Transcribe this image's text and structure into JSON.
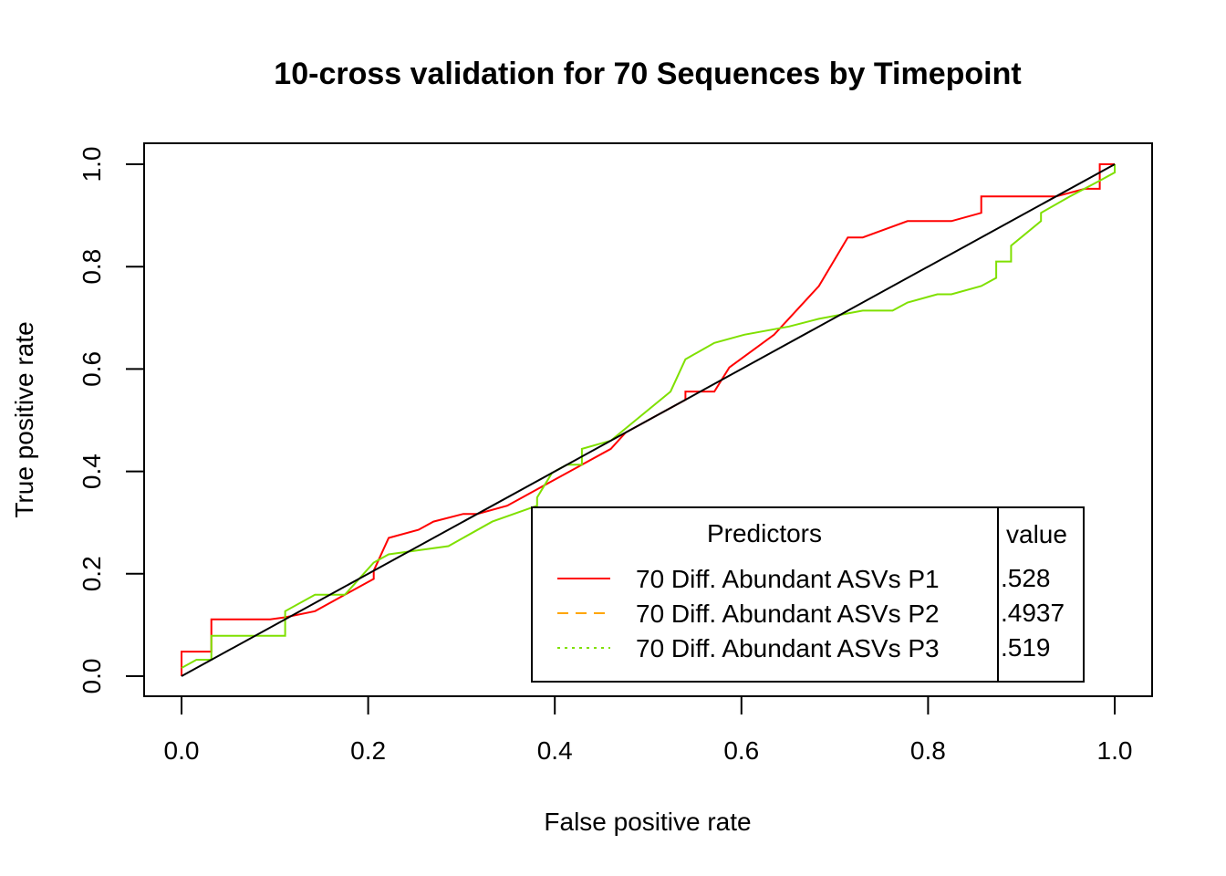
{
  "chart_data": {
    "type": "line",
    "title": "10-cross validation for 70 Sequences by Timepoint",
    "xlabel": "False positive rate",
    "ylabel": "True positive rate",
    "xlim": [
      0,
      1
    ],
    "ylim": [
      0,
      1
    ],
    "x_ticks": [
      "0.0",
      "0.2",
      "0.4",
      "0.6",
      "0.8",
      "1.0"
    ],
    "y_ticks": [
      "0.0",
      "0.2",
      "0.4",
      "0.6",
      "0.8",
      "1.0"
    ],
    "grid": false,
    "legend": {
      "title": "Predictors",
      "value_header": "value",
      "placement": "bottom-right",
      "entries": [
        {
          "label": "70 Diff. Abundant ASVs P1",
          "value": ".528",
          "color": "#FF0000",
          "dash": "solid"
        },
        {
          "label": "70 Diff. Abundant ASVs P2",
          "value": ".4937",
          "color": "#FFA500",
          "dash": "dashed"
        },
        {
          "label": "70 Diff. Abundant ASVs P3",
          "value": ".519",
          "color": "#7FE000",
          "dash": "dotted"
        }
      ]
    },
    "series": [
      {
        "name": "70 Diff. Abundant ASVs P1",
        "color": "#FF0000",
        "points": [
          [
            0,
            0
          ],
          [
            0,
            0.048
          ],
          [
            0.032,
            0.048
          ],
          [
            0.032,
            0.111
          ],
          [
            0.095,
            0.111
          ],
          [
            0.111,
            0.115
          ],
          [
            0.143,
            0.127
          ],
          [
            0.175,
            0.159
          ],
          [
            0.206,
            0.19
          ],
          [
            0.206,
            0.206
          ],
          [
            0.222,
            0.27
          ],
          [
            0.254,
            0.286
          ],
          [
            0.27,
            0.302
          ],
          [
            0.302,
            0.317
          ],
          [
            0.317,
            0.317
          ],
          [
            0.349,
            0.333
          ],
          [
            0.365,
            0.349
          ],
          [
            0.397,
            0.381
          ],
          [
            0.429,
            0.413
          ],
          [
            0.46,
            0.444
          ],
          [
            0.476,
            0.476
          ],
          [
            0.508,
            0.508
          ],
          [
            0.54,
            0.54
          ],
          [
            0.54,
            0.556
          ],
          [
            0.571,
            0.556
          ],
          [
            0.587,
            0.603
          ],
          [
            0.635,
            0.667
          ],
          [
            0.683,
            0.762
          ],
          [
            0.714,
            0.857
          ],
          [
            0.73,
            0.857
          ],
          [
            0.778,
            0.889
          ],
          [
            0.825,
            0.889
          ],
          [
            0.857,
            0.905
          ],
          [
            0.857,
            0.937
          ],
          [
            0.937,
            0.937
          ],
          [
            0.968,
            0.952
          ],
          [
            0.984,
            0.952
          ],
          [
            0.984,
            1.0
          ],
          [
            1.0,
            1.0
          ]
        ]
      },
      {
        "name": "70 Diff. Abundant ASVs P3",
        "color": "#7FE000",
        "points": [
          [
            0,
            0.016
          ],
          [
            0.016,
            0.032
          ],
          [
            0.032,
            0.032
          ],
          [
            0.032,
            0.079
          ],
          [
            0.111,
            0.079
          ],
          [
            0.111,
            0.127
          ],
          [
            0.143,
            0.159
          ],
          [
            0.175,
            0.159
          ],
          [
            0.206,
            0.222
          ],
          [
            0.222,
            0.238
          ],
          [
            0.254,
            0.246
          ],
          [
            0.286,
            0.254
          ],
          [
            0.333,
            0.302
          ],
          [
            0.381,
            0.333
          ],
          [
            0.381,
            0.349
          ],
          [
            0.397,
            0.397
          ],
          [
            0.413,
            0.413
          ],
          [
            0.429,
            0.413
          ],
          [
            0.429,
            0.444
          ],
          [
            0.46,
            0.46
          ],
          [
            0.492,
            0.508
          ],
          [
            0.524,
            0.556
          ],
          [
            0.54,
            0.619
          ],
          [
            0.571,
            0.651
          ],
          [
            0.603,
            0.667
          ],
          [
            0.651,
            0.683
          ],
          [
            0.683,
            0.698
          ],
          [
            0.73,
            0.714
          ],
          [
            0.746,
            0.714
          ],
          [
            0.762,
            0.714
          ],
          [
            0.778,
            0.73
          ],
          [
            0.81,
            0.746
          ],
          [
            0.825,
            0.746
          ],
          [
            0.857,
            0.762
          ],
          [
            0.873,
            0.778
          ],
          [
            0.873,
            0.81
          ],
          [
            0.889,
            0.81
          ],
          [
            0.889,
            0.841
          ],
          [
            0.921,
            0.889
          ],
          [
            0.921,
            0.905
          ],
          [
            0.952,
            0.937
          ],
          [
            0.984,
            0.968
          ],
          [
            1.0,
            0.984
          ],
          [
            1.0,
            1.0
          ]
        ]
      },
      {
        "name": "",
        "color": "#000000",
        "points": [
          [
            0,
            0
          ],
          [
            1,
            1
          ]
        ]
      }
    ]
  }
}
